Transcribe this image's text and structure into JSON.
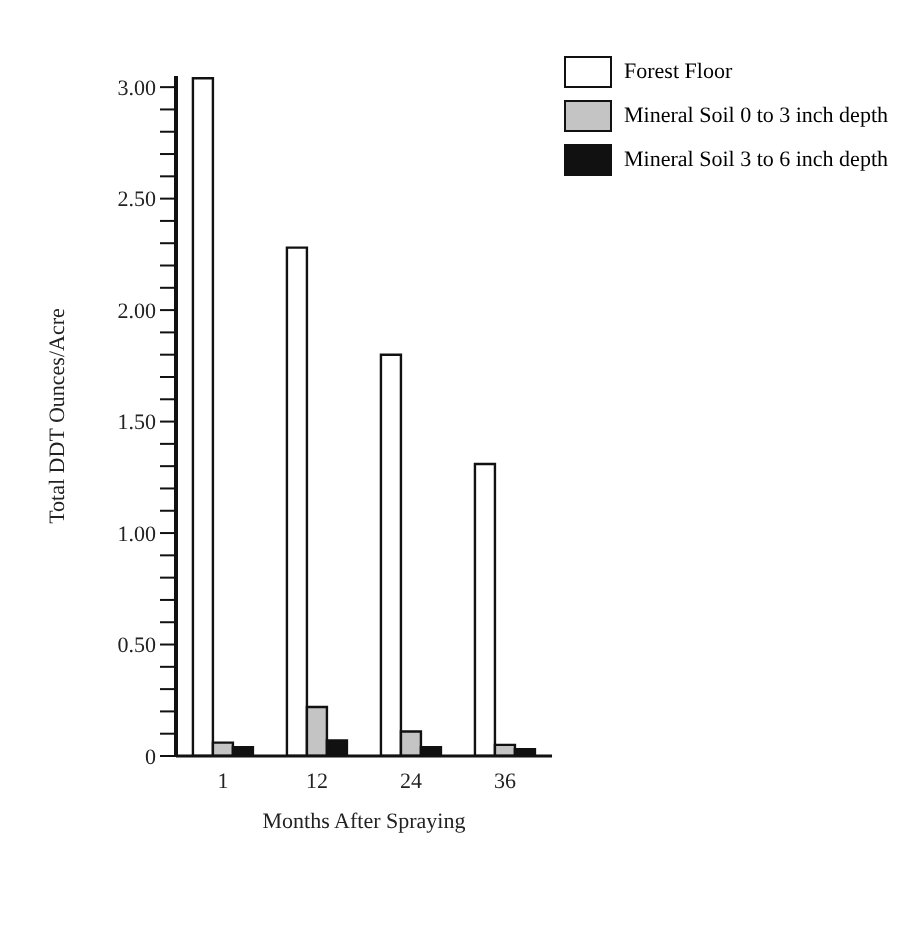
{
  "chart_data": {
    "type": "bar",
    "xlabel": "Months After Spraying",
    "ylabel": "Total DDT Ounces/Acre",
    "categories": [
      "1",
      "12",
      "24",
      "36"
    ],
    "series": [
      {
        "name": "Forest Floor",
        "color": "#ffffff",
        "values": [
          3.04,
          2.28,
          1.8,
          1.31
        ]
      },
      {
        "name": "Mineral Soil 0 to 3 inch depth",
        "color": "#c4c4c4",
        "values": [
          0.06,
          0.22,
          0.11,
          0.05
        ]
      },
      {
        "name": "Mineral Soil 3  to 6 inch depth",
        "color": "#111111",
        "values": [
          0.04,
          0.07,
          0.04,
          0.03
        ]
      }
    ],
    "ylim": [
      0,
      3.05
    ],
    "yticks": [
      {
        "value": 0,
        "label": "0"
      },
      {
        "value": 0.1,
        "label": null
      },
      {
        "value": 0.2,
        "label": null
      },
      {
        "value": 0.3,
        "label": null
      },
      {
        "value": 0.4,
        "label": null
      },
      {
        "value": 0.5,
        "label": "0.50"
      },
      {
        "value": 0.6,
        "label": null
      },
      {
        "value": 0.7,
        "label": null
      },
      {
        "value": 0.8,
        "label": null
      },
      {
        "value": 0.9,
        "label": null
      },
      {
        "value": 1,
        "label": "1.00"
      },
      {
        "value": 1.1,
        "label": null
      },
      {
        "value": 1.2,
        "label": null
      },
      {
        "value": 1.3,
        "label": null
      },
      {
        "value": 1.4,
        "label": null
      },
      {
        "value": 1.5,
        "label": "1.50"
      },
      {
        "value": 1.6,
        "label": null
      },
      {
        "value": 1.7,
        "label": null
      },
      {
        "value": 1.8,
        "label": null
      },
      {
        "value": 1.9,
        "label": null
      },
      {
        "value": 2,
        "label": "2.00"
      },
      {
        "value": 2.1,
        "label": null
      },
      {
        "value": 2.2,
        "label": null
      },
      {
        "value": 2.3,
        "label": null
      },
      {
        "value": 2.4,
        "label": null
      },
      {
        "value": 2.5,
        "label": "2.50"
      },
      {
        "value": 2.6,
        "label": null
      },
      {
        "value": 2.7,
        "label": null
      },
      {
        "value": 2.8,
        "label": null
      },
      {
        "value": 2.9,
        "label": null
      },
      {
        "value": 3,
        "label": "3.00"
      }
    ],
    "grid": false,
    "legend": "top right"
  }
}
